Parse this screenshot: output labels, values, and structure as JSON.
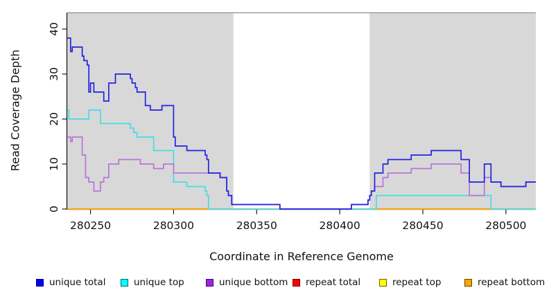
{
  "figure": {
    "x_title": "Coordinate in Reference Genome",
    "y_title": "Read Coverage Depth"
  },
  "legend": {
    "items": [
      {
        "label": "unique total",
        "color": "#0000ff"
      },
      {
        "label": "unique top",
        "color": "#00ffff"
      },
      {
        "label": "unique bottom",
        "color": "#a020f0"
      },
      {
        "label": "repeat total",
        "color": "#ff0000"
      },
      {
        "label": "repeat top",
        "color": "#ffff00"
      },
      {
        "label": "repeat bottom",
        "color": "#ffa500"
      }
    ]
  },
  "chart_data": {
    "type": "line",
    "subtype": "step",
    "xlabel": "Coordinate in Reference Genome",
    "ylabel": "Read Coverage Depth",
    "xlim": [
      280236,
      280518
    ],
    "ylim": [
      0,
      43.7
    ],
    "grid": false,
    "legend_position": "bottom",
    "plot_background": "#ffffff",
    "shaded_regions": [
      {
        "x0": 280236,
        "x1": 280336,
        "color": "#d8d8d8"
      },
      {
        "x0": 280418,
        "x1": 280518,
        "color": "#d8d8d8"
      }
    ],
    "x_ticks": [
      {
        "value": 280250,
        "label": "280250"
      },
      {
        "value": 280300,
        "label": "280300"
      },
      {
        "value": 280350,
        "label": "280350"
      },
      {
        "value": 280400,
        "label": "280400"
      },
      {
        "value": 280450,
        "label": "280450"
      },
      {
        "value": 280500,
        "label": "280500"
      }
    ],
    "y_ticks": [
      {
        "value": 0,
        "label": "0"
      },
      {
        "value": 10,
        "label": "10"
      },
      {
        "value": 20,
        "label": "20"
      },
      {
        "value": 30,
        "label": "30"
      },
      {
        "value": 40,
        "label": "40"
      }
    ],
    "series": [
      {
        "name": "unique total",
        "color": "#2222e0",
        "z": 6,
        "points": [
          [
            280236,
            38
          ],
          [
            280238,
            35
          ],
          [
            280239,
            36
          ],
          [
            280245,
            34
          ],
          [
            280246,
            33
          ],
          [
            280248,
            32
          ],
          [
            280249,
            26
          ],
          [
            280250,
            28
          ],
          [
            280252,
            26
          ],
          [
            280258,
            24
          ],
          [
            280261,
            28
          ],
          [
            280265,
            30
          ],
          [
            280274,
            29
          ],
          [
            280275,
            28
          ],
          [
            280277,
            27
          ],
          [
            280278,
            26
          ],
          [
            280283,
            23
          ],
          [
            280286,
            22
          ],
          [
            280293,
            23
          ],
          [
            280300,
            16
          ],
          [
            280301,
            14
          ],
          [
            280308,
            13
          ],
          [
            280319,
            12
          ],
          [
            280320,
            11
          ],
          [
            280321,
            8
          ],
          [
            280328,
            7
          ],
          [
            280332,
            4
          ],
          [
            280333,
            3
          ],
          [
            280335,
            1
          ],
          [
            280364,
            0
          ],
          [
            280407,
            1
          ],
          [
            280417,
            2
          ],
          [
            280418,
            3
          ],
          [
            280419,
            4
          ],
          [
            280421,
            8
          ],
          [
            280426,
            10
          ],
          [
            280429,
            11
          ],
          [
            280443,
            12
          ],
          [
            280455,
            13
          ],
          [
            280473,
            11
          ],
          [
            280478,
            6
          ],
          [
            280487,
            10
          ],
          [
            280491,
            6
          ],
          [
            280497,
            5
          ],
          [
            280512,
            6
          ],
          [
            280518,
            6
          ]
        ]
      },
      {
        "name": "unique top",
        "color": "#45dde2",
        "z": 4,
        "points": [
          [
            280236,
            22
          ],
          [
            280237,
            20
          ],
          [
            280249,
            22
          ],
          [
            280256,
            19
          ],
          [
            280274,
            18
          ],
          [
            280276,
            17
          ],
          [
            280278,
            16
          ],
          [
            280288,
            13
          ],
          [
            280300,
            6
          ],
          [
            280308,
            5
          ],
          [
            280319,
            4
          ],
          [
            280320,
            3
          ],
          [
            280321,
            0
          ],
          [
            280422,
            3
          ],
          [
            280491,
            0
          ],
          [
            280518,
            0
          ]
        ]
      },
      {
        "name": "unique bottom",
        "color": "#b873dc",
        "z": 5,
        "points": [
          [
            280236,
            16
          ],
          [
            280238,
            15
          ],
          [
            280239,
            16
          ],
          [
            280245,
            12
          ],
          [
            280247,
            7
          ],
          [
            280249,
            6
          ],
          [
            280252,
            4
          ],
          [
            280256,
            6
          ],
          [
            280258,
            7
          ],
          [
            280261,
            10
          ],
          [
            280267,
            11
          ],
          [
            280280,
            10
          ],
          [
            280288,
            9
          ],
          [
            280294,
            10
          ],
          [
            280300,
            8
          ],
          [
            280321,
            8
          ],
          [
            280328,
            7
          ],
          [
            280332,
            4
          ],
          [
            280333,
            3
          ],
          [
            280335,
            1
          ],
          [
            280364,
            0
          ],
          [
            280407,
            1
          ],
          [
            280417,
            2
          ],
          [
            280418,
            3
          ],
          [
            280419,
            4
          ],
          [
            280421,
            5
          ],
          [
            280426,
            7
          ],
          [
            280429,
            8
          ],
          [
            280443,
            9
          ],
          [
            280455,
            10
          ],
          [
            280473,
            8
          ],
          [
            280478,
            3
          ],
          [
            280487,
            7
          ],
          [
            280491,
            6
          ],
          [
            280497,
            5
          ],
          [
            280512,
            6
          ],
          [
            280518,
            6
          ]
        ]
      },
      {
        "name": "repeat total",
        "color": "#ee2222",
        "z": 1,
        "points": [
          [
            280236,
            0
          ],
          [
            280518,
            0
          ]
        ]
      },
      {
        "name": "repeat top",
        "color": "#f2f22a",
        "z": 2,
        "points": [
          [
            280236,
            0
          ],
          [
            280518,
            0
          ]
        ]
      },
      {
        "name": "repeat bottom",
        "color": "#ff9d00",
        "z": 3,
        "points": [
          [
            280236,
            0
          ],
          [
            280518,
            0
          ]
        ]
      }
    ]
  }
}
